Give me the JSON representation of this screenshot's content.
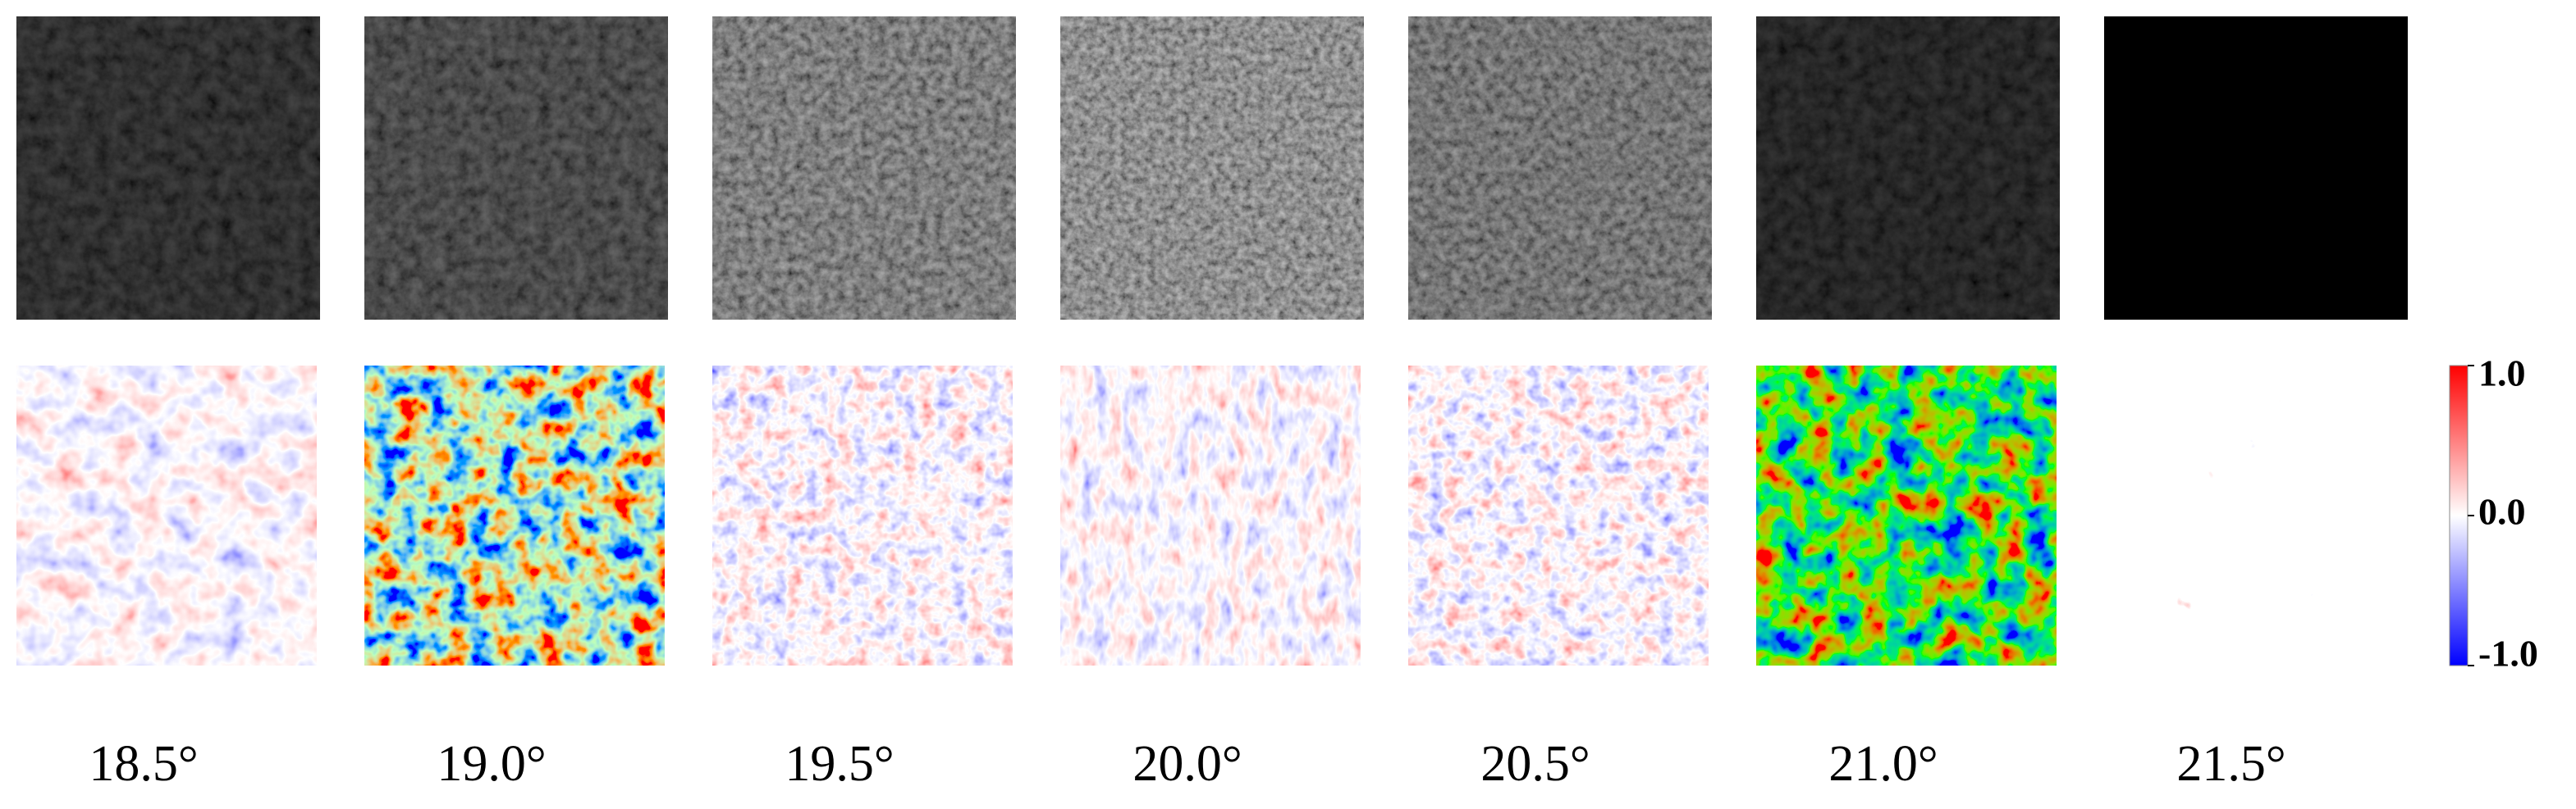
{
  "panels": [
    {
      "label": "18.5°"
    },
    {
      "label": "19.0°"
    },
    {
      "label": "19.5°"
    },
    {
      "label": "20.0°"
    },
    {
      "label": "20.5°"
    },
    {
      "label": "21.0°"
    },
    {
      "label": "21.5°"
    }
  ],
  "colorbar": {
    "range": [
      -1,
      1
    ],
    "ticks": [
      {
        "value": 1,
        "label": "1.0"
      },
      {
        "value": 0,
        "label": "0.0"
      },
      {
        "value": -1,
        "label": "-1.0"
      }
    ]
  }
}
